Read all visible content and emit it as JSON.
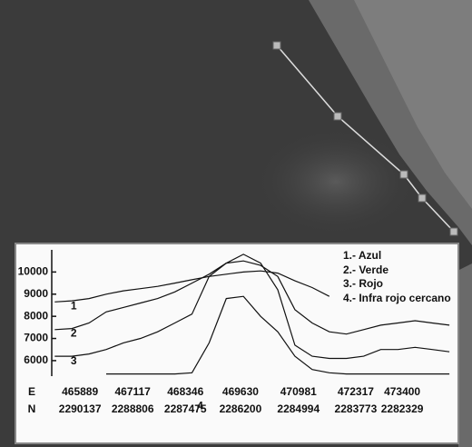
{
  "chart_data": {
    "type": "line",
    "x": [
      465300,
      465700,
      466100,
      466500,
      466900,
      467300,
      467700,
      468100,
      468500,
      468900,
      469300,
      469700,
      470100,
      470500,
      470900,
      471300,
      471700,
      472100,
      472500,
      472900,
      473300,
      473700,
      474100,
      474500
    ],
    "xlim": [
      465230,
      474710
    ],
    "xlabel": "E",
    "xticks": [
      465889,
      467117,
      468346,
      469630,
      470981,
      472317,
      473400
    ],
    "x2label": "N",
    "x2ticks": [
      2290137,
      2288806,
      2287475,
      2286200,
      2284994,
      2283773,
      2282329
    ],
    "ylim": [
      5300,
      11000
    ],
    "yticks": [
      6000,
      7000,
      8000,
      9000,
      10000
    ],
    "series": [
      {
        "name": "1.- Azul",
        "label": "1",
        "color": "#111111",
        "values": [
          8650,
          8700,
          8800,
          9000,
          9150,
          9250,
          9350,
          9500,
          9650,
          9800,
          9900,
          10000,
          10050,
          9950,
          9600,
          9300,
          8900,
          null,
          null,
          null,
          null,
          null,
          null,
          null
        ]
      },
      {
        "name": "2.- Verde",
        "label": "2",
        "color": "#111111",
        "values": [
          7400,
          7450,
          7700,
          8200,
          8400,
          8600,
          8800,
          9100,
          9500,
          9900,
          10400,
          10500,
          10300,
          9800,
          8300,
          7700,
          7300,
          7200,
          7400,
          7600,
          7700,
          7800,
          7700,
          7600
        ]
      },
      {
        "name": "3.- Rojo",
        "label": "3",
        "color": "#111111",
        "values": [
          6200,
          6200,
          6300,
          6500,
          6800,
          7000,
          7300,
          7700,
          8100,
          9800,
          10400,
          10800,
          10400,
          9200,
          6700,
          6200,
          6100,
          6100,
          6200,
          6500,
          6500,
          6600,
          6500,
          6400
        ]
      },
      {
        "name": "4.- Infra rojo cercano",
        "label": "4",
        "color": "#111111",
        "values": [
          null,
          null,
          null,
          5400,
          5400,
          5400,
          5400,
          5400,
          5450,
          6800,
          8800,
          8900,
          8000,
          7300,
          6200,
          5600,
          5450,
          5400,
          5400,
          5400,
          5400,
          5400,
          5400,
          5400
        ]
      }
    ]
  }
}
